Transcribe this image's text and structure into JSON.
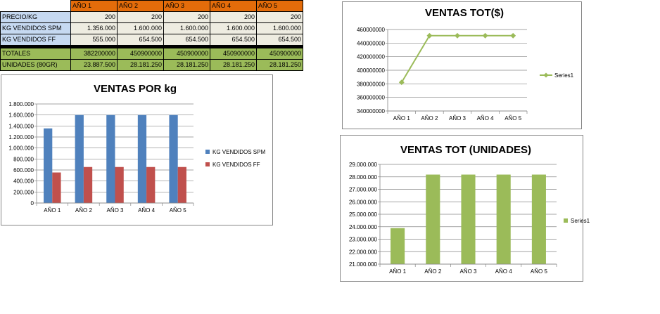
{
  "table": {
    "header": [
      "",
      "AÑO 1",
      "AÑO 2",
      "AÑO 3",
      "AÑO 4",
      "AÑO 5"
    ],
    "rows": [
      {
        "label": "PRECIO/KG",
        "values": [
          "200",
          "200",
          "200",
          "200",
          "200"
        ]
      },
      {
        "label": "KG VENDIDOS SPM",
        "values": [
          "1.356.000",
          "1.600.000",
          "1.600.000",
          "1.600.000",
          "1.600.000"
        ]
      },
      {
        "label": "KG VENDIDOS FF",
        "values": [
          "555.000",
          "654.500",
          "654.500",
          "654.500",
          "654.500"
        ]
      },
      {
        "label": "TOTALES",
        "values": [
          "382200000",
          "450900000",
          "450900000",
          "450900000",
          "450900000"
        ]
      },
      {
        "label": "UNIDADES (80GR)",
        "values": [
          "23.887.500",
          "28.181.250",
          "28.181.250",
          "28.181.250",
          "28.181.250"
        ]
      }
    ],
    "colors": {
      "header": "#e46c0a",
      "label_blue": "#c6d9f1",
      "value_beige": "#eeece1",
      "totals_green": "#9bbb59"
    }
  },
  "chart_data": [
    {
      "id": "ventas-kg",
      "type": "bar",
      "title": "VENTAS POR kg",
      "categories": [
        "AÑO 1",
        "AÑO 2",
        "AÑO 3",
        "AÑO 4",
        "AÑO 5"
      ],
      "series": [
        {
          "name": "KG VENDIDOS SPM",
          "values": [
            1356000,
            1600000,
            1600000,
            1600000,
            1600000
          ],
          "color": "#4f81bd"
        },
        {
          "name": "KG VENDIDOS FF",
          "values": [
            555000,
            654500,
            654500,
            654500,
            654500
          ],
          "color": "#c0504d"
        }
      ],
      "ylim": [
        0,
        1800000
      ],
      "yticks": [
        0,
        200000,
        400000,
        600000,
        800000,
        1000000,
        1200000,
        1400000,
        1600000,
        1800000
      ],
      "yticklabels": [
        "0",
        "200.000",
        "400.000",
        "600.000",
        "800.000",
        "1.000.000",
        "1.200.000",
        "1.400.000",
        "1.600.000",
        "1.800.000"
      ],
      "grid": true,
      "legend": "right"
    },
    {
      "id": "ventas-tot",
      "type": "line",
      "title": "VENTAS TOT($)",
      "categories": [
        "AÑO 1",
        "AÑO 2",
        "AÑO 3",
        "AÑO 4",
        "AÑO 5"
      ],
      "series": [
        {
          "name": "Series1",
          "values": [
            382200000,
            450900000,
            450900000,
            450900000,
            450900000
          ],
          "color": "#9bbb59"
        }
      ],
      "ylim": [
        340000000,
        460000000
      ],
      "yticks": [
        340000000,
        360000000,
        380000000,
        400000000,
        420000000,
        440000000,
        460000000
      ],
      "yticklabels": [
        "340000000",
        "360000000",
        "380000000",
        "400000000",
        "420000000",
        "440000000",
        "460000000"
      ],
      "grid": true,
      "legend": "right"
    },
    {
      "id": "ventas-unidades",
      "type": "bar",
      "title": "VENTAS TOT (UNIDADES)",
      "categories": [
        "AÑO 1",
        "AÑO 2",
        "AÑO 3",
        "AÑO 4",
        "AÑO 5"
      ],
      "series": [
        {
          "name": "Series1",
          "values": [
            23887500,
            28181250,
            28181250,
            28181250,
            28181250
          ],
          "color": "#9bbb59"
        }
      ],
      "ylim": [
        21000000,
        29000000
      ],
      "yticks": [
        21000000,
        22000000,
        23000000,
        24000000,
        25000000,
        26000000,
        27000000,
        28000000,
        29000000
      ],
      "yticklabels": [
        "21.000.000",
        "22.000.000",
        "23.000.000",
        "24.000.000",
        "25.000.000",
        "26.000.000",
        "27.000.000",
        "28.000.000",
        "29.000.000"
      ],
      "grid": true,
      "legend": "right"
    }
  ]
}
